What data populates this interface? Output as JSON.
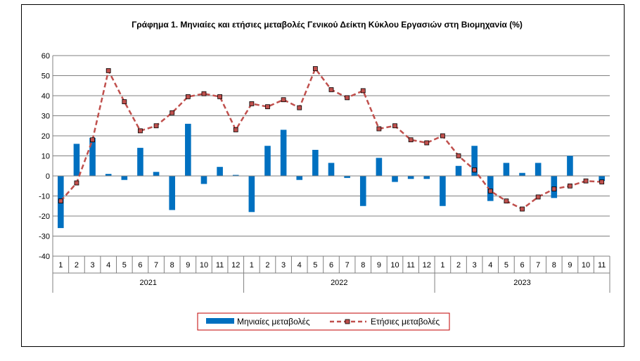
{
  "chart_data": {
    "type": "bar",
    "title": "Γράφημα 1. Μηνιαίες και ετήσιες μεταβολές  Γενικού Δείκτη Κύκλου Εργασιών στη Βιομηχανία (%)",
    "xlabel": "",
    "ylabel": "",
    "ylim": [
      -40,
      60
    ],
    "yticks": [
      60,
      50,
      40,
      30,
      20,
      10,
      0,
      -10,
      -20,
      -30,
      -40
    ],
    "grid": true,
    "legend_position": "bottom",
    "categories": [
      "1",
      "2",
      "3",
      "4",
      "5",
      "6",
      "7",
      "8",
      "9",
      "10",
      "11",
      "12",
      "1",
      "2",
      "3",
      "4",
      "5",
      "6",
      "7",
      "8",
      "9",
      "10",
      "11",
      "12",
      "1",
      "2",
      "3",
      "4",
      "5",
      "6",
      "7",
      "8",
      "9",
      "10",
      "11"
    ],
    "groups": [
      {
        "label": "2021",
        "count": 12
      },
      {
        "label": "2022",
        "count": 12
      },
      {
        "label": "2023",
        "count": 11
      }
    ],
    "series": [
      {
        "name": "Μηνιαίες μεταβολές",
        "kind": "bar",
        "color": "#0070C0",
        "values": [
          -26,
          16,
          19,
          1,
          -2,
          14,
          2,
          -17,
          26,
          -4,
          4.5,
          0.5,
          -18,
          15,
          23,
          -2,
          13,
          6.5,
          -1,
          -15,
          9,
          -3,
          -1.5,
          -1.5,
          -15,
          5,
          15,
          -12.5,
          6.5,
          1.5,
          6.5,
          -11,
          10,
          0,
          -2.5
        ]
      },
      {
        "name": "Ετήσιες μεταβολές",
        "kind": "line",
        "color": "#C0504D",
        "style": "dashed",
        "values": [
          -12.5,
          -3.5,
          18,
          52.5,
          37,
          22.5,
          25,
          31.5,
          39.5,
          41,
          39.5,
          23,
          36,
          34.5,
          38,
          34,
          53.5,
          43,
          39,
          42.5,
          23.5,
          25,
          18,
          16.5,
          20,
          10,
          3,
          -7.5,
          -12.5,
          -16.5,
          -10.5,
          -6.5,
          -5,
          -2.5,
          -3
        ]
      }
    ]
  }
}
